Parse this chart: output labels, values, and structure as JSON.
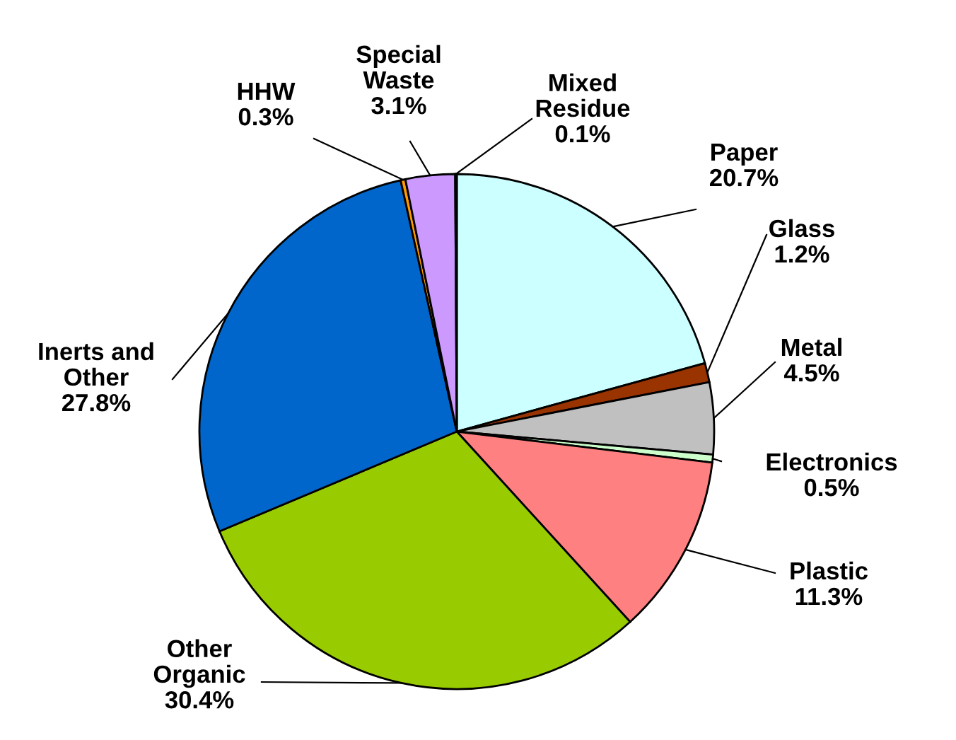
{
  "chart_data": {
    "type": "pie",
    "categories": [
      "Paper",
      "Glass",
      "Metal",
      "Electronics",
      "Plastic",
      "Other Organic",
      "Inerts and Other",
      "HHW",
      "Special Waste",
      "Mixed Residue"
    ],
    "values": [
      20.7,
      1.2,
      4.5,
      0.5,
      11.3,
      30.4,
      27.8,
      0.3,
      3.1,
      0.1
    ],
    "colors": [
      "#ccffff",
      "#993300",
      "#c0c0c0",
      "#ccffcc",
      "#ff8080",
      "#99cc00",
      "#0066cc",
      "#ff9900",
      "#cc99ff",
      "#339966"
    ],
    "value_labels": [
      "20.7%",
      "1.2%",
      "4.5%",
      "0.5%",
      "11.3%",
      "30.4%",
      "27.8%",
      "0.3%",
      "3.1%",
      "0.1%"
    ]
  }
}
